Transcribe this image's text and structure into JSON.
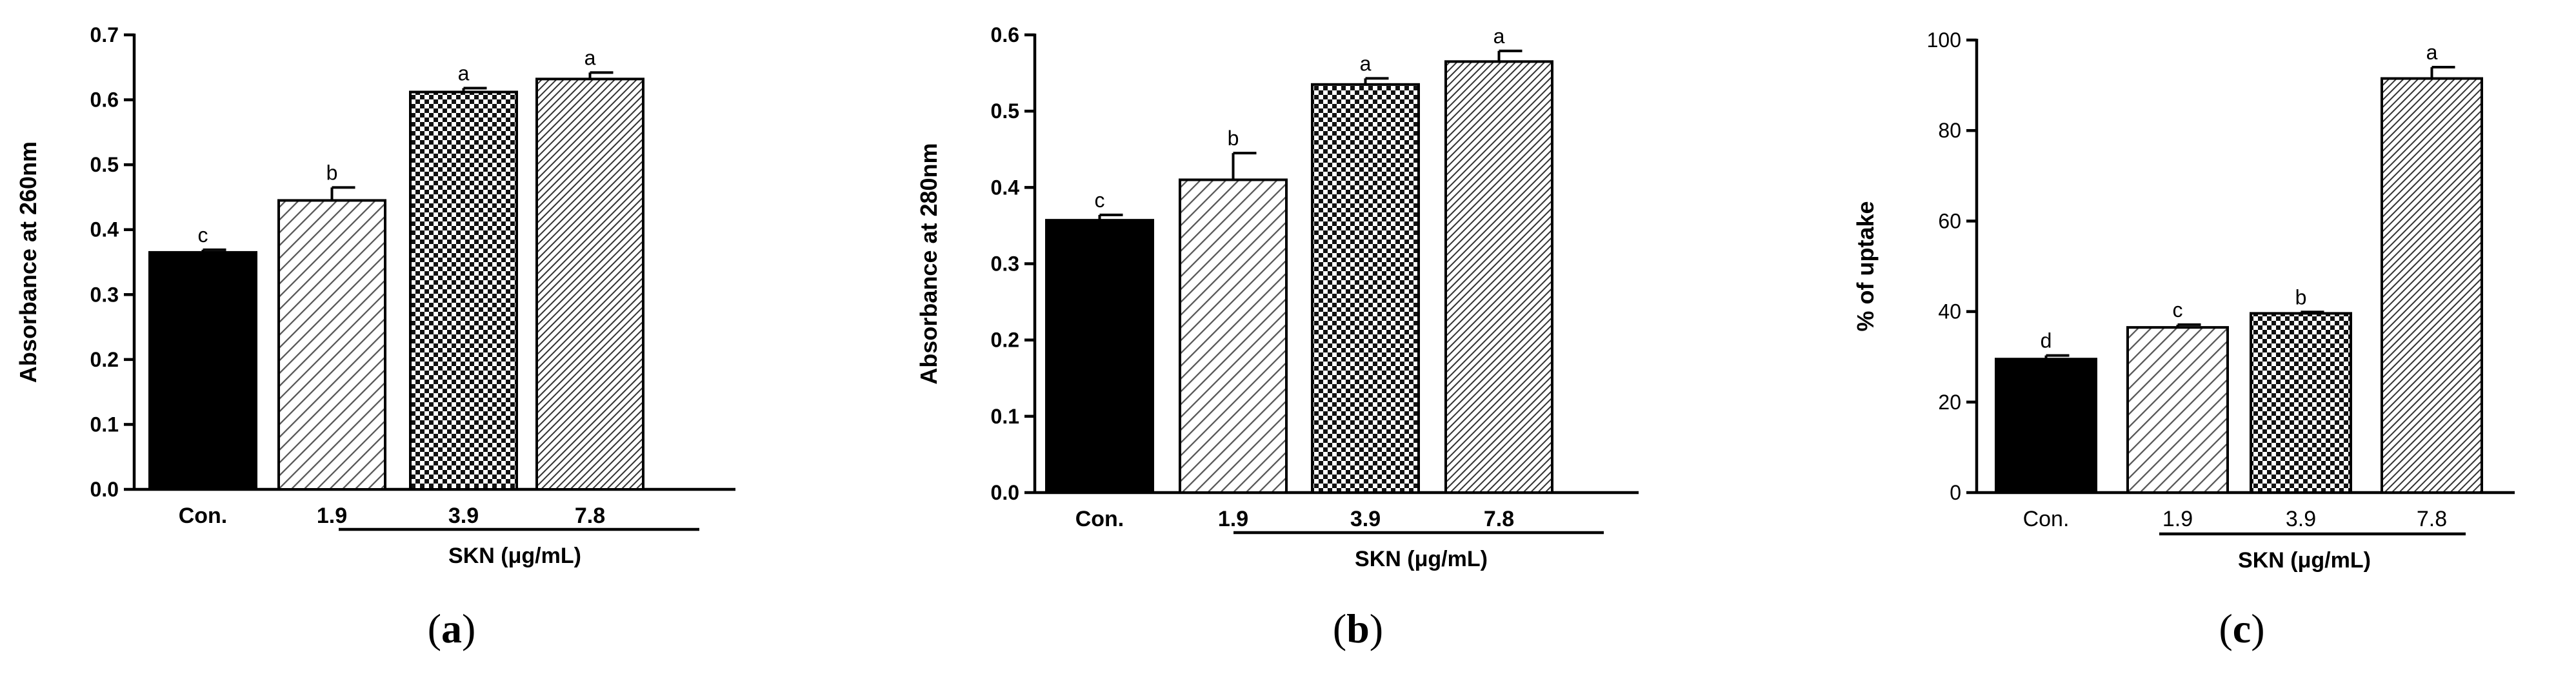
{
  "chart_data": [
    {
      "panel": "a",
      "type": "bar",
      "ylabel": "Absorbance at 260nm",
      "xlabel": "SKN (μg/mL)",
      "categories": [
        "Con.",
        "1.9",
        "3.9",
        "7.8"
      ],
      "values": [
        0.365,
        0.445,
        0.612,
        0.632
      ],
      "errors": [
        0.004,
        0.02,
        0.006,
        0.01
      ],
      "significance": [
        "c",
        "b",
        "a",
        "a"
      ],
      "patterns": [
        "solid",
        "diagonal",
        "checker",
        "fine-diagonal"
      ],
      "ylim": [
        0,
        0.7
      ],
      "yticks": [
        "0.0",
        "0.1",
        "0.2",
        "0.3",
        "0.4",
        "0.5",
        "0.6",
        "0.7"
      ],
      "bold_ticks": true,
      "caption_open": "(",
      "caption_letter": "a",
      "caption_close": ")"
    },
    {
      "panel": "b",
      "type": "bar",
      "ylabel": "Absorbance at 280nm",
      "xlabel": "SKN (μg/mL)",
      "categories": [
        "Con.",
        "1.9",
        "3.9",
        "7.8"
      ],
      "values": [
        0.357,
        0.41,
        0.535,
        0.565
      ],
      "errors": [
        0.007,
        0.035,
        0.008,
        0.014
      ],
      "significance": [
        "c",
        "b",
        "a",
        "a"
      ],
      "patterns": [
        "solid",
        "diagonal",
        "checker",
        "fine-diagonal"
      ],
      "ylim": [
        0,
        0.6
      ],
      "yticks": [
        "0.0",
        "0.1",
        "0.2",
        "0.3",
        "0.4",
        "0.5",
        "0.6"
      ],
      "bold_ticks": true,
      "caption_open": "(",
      "caption_letter": "b",
      "caption_close": ")"
    },
    {
      "panel": "c",
      "type": "bar",
      "ylabel": "% of uptake",
      "xlabel": "SKN (μg/mL)",
      "categories": [
        "Con.",
        "1.9",
        "3.9",
        "7.8"
      ],
      "values": [
        29.5,
        36.5,
        39.6,
        91.5
      ],
      "errors": [
        0.8,
        0.6,
        0.3,
        2.5
      ],
      "significance": [
        "d",
        "c",
        "b",
        "a"
      ],
      "patterns": [
        "solid",
        "diagonal",
        "checker",
        "fine-diagonal"
      ],
      "ylim": [
        0,
        100
      ],
      "yticks": [
        "0",
        "20",
        "40",
        "60",
        "80",
        "100"
      ],
      "bold_ticks": false,
      "caption_open": "(",
      "caption_letter": "c",
      "caption_close": ")"
    }
  ]
}
